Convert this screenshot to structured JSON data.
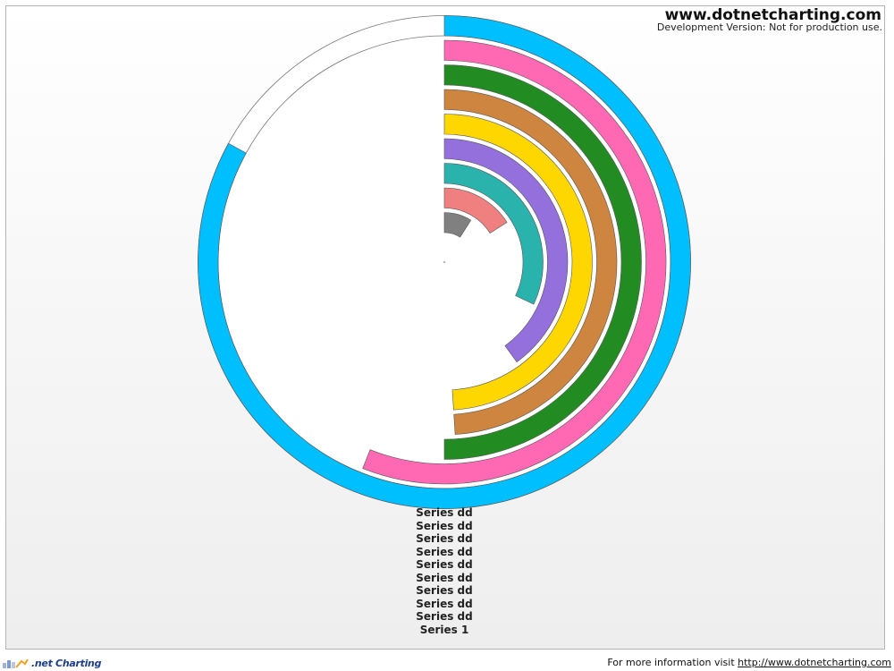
{
  "branding": {
    "title": "www.dotnetcharting.com",
    "subtitle": "Development Version: Not for production use.",
    "logo_text": ".net Charting"
  },
  "footer": {
    "info_text": "For more information visit",
    "link_text": "http://www.dotnetcharting.com"
  },
  "chart_data": {
    "type": "radial-bar",
    "start_angle": "top",
    "direction": "clockwise",
    "max_value": 100,
    "title": "",
    "series": [
      {
        "name": "Series 1",
        "value": 0,
        "color": "#808080"
      },
      {
        "name": "Series dd",
        "value": 9,
        "color": "#808080"
      },
      {
        "name": "Series dd",
        "value": 16,
        "color": "#f08080"
      },
      {
        "name": "Series dd",
        "value": 32,
        "color": "#2ab3ad"
      },
      {
        "name": "Series dd",
        "value": 40,
        "color": "#9370db"
      },
      {
        "name": "Series dd",
        "value": 49,
        "color": "#ffd700"
      },
      {
        "name": "Series dd",
        "value": 49,
        "color": "#cd853f"
      },
      {
        "name": "Series dd",
        "value": 50,
        "color": "#228b22"
      },
      {
        "name": "Series dd",
        "value": 56,
        "color": "#ff69b4"
      },
      {
        "name": "Series dd",
        "value": 83,
        "color": "#00bfff"
      }
    ],
    "legend": {
      "position": "bottom",
      "entries": [
        "Series dd",
        "Series dd",
        "Series dd",
        "Series dd",
        "Series dd",
        "Series dd",
        "Series dd",
        "Series dd",
        "Series dd",
        "Series 1"
      ]
    }
  }
}
